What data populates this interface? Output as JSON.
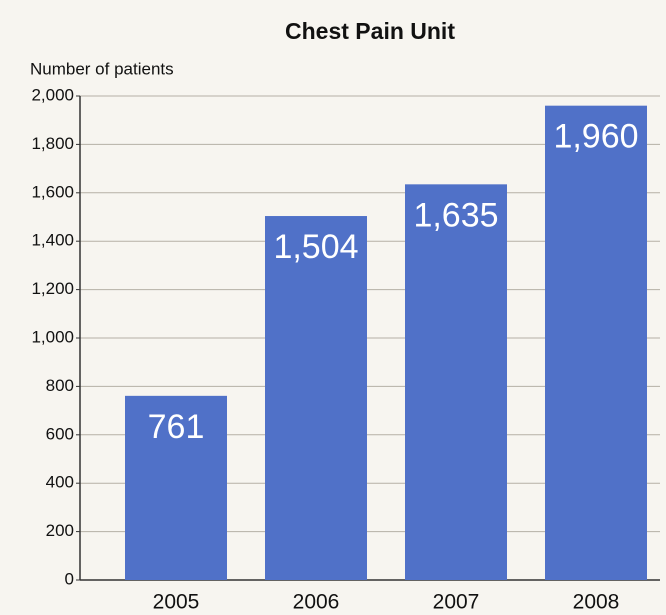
{
  "chart_data": {
    "type": "bar",
    "title": "Chest Pain Unit",
    "y_label": "Number of patients",
    "categories": [
      "2005",
      "2006",
      "2007",
      "2008"
    ],
    "values": [
      761,
      1504,
      1635,
      1960
    ],
    "value_labels": [
      "761",
      "1,504",
      "1,635",
      "1,960"
    ],
    "color": "#5071c8",
    "ylim": [
      0,
      2000
    ],
    "yticks": [
      0,
      200,
      400,
      600,
      800,
      {
        "value": 1000,
        "label": "1,000"
      },
      {
        "value": 1200,
        "label": "1,200"
      },
      {
        "value": 1400,
        "label": "1,400"
      },
      {
        "value": 1600,
        "label": "1,600"
      },
      {
        "value": 1800,
        "label": "1,800"
      },
      {
        "value": 2000,
        "label": "2,000"
      }
    ],
    "grid": true
  }
}
